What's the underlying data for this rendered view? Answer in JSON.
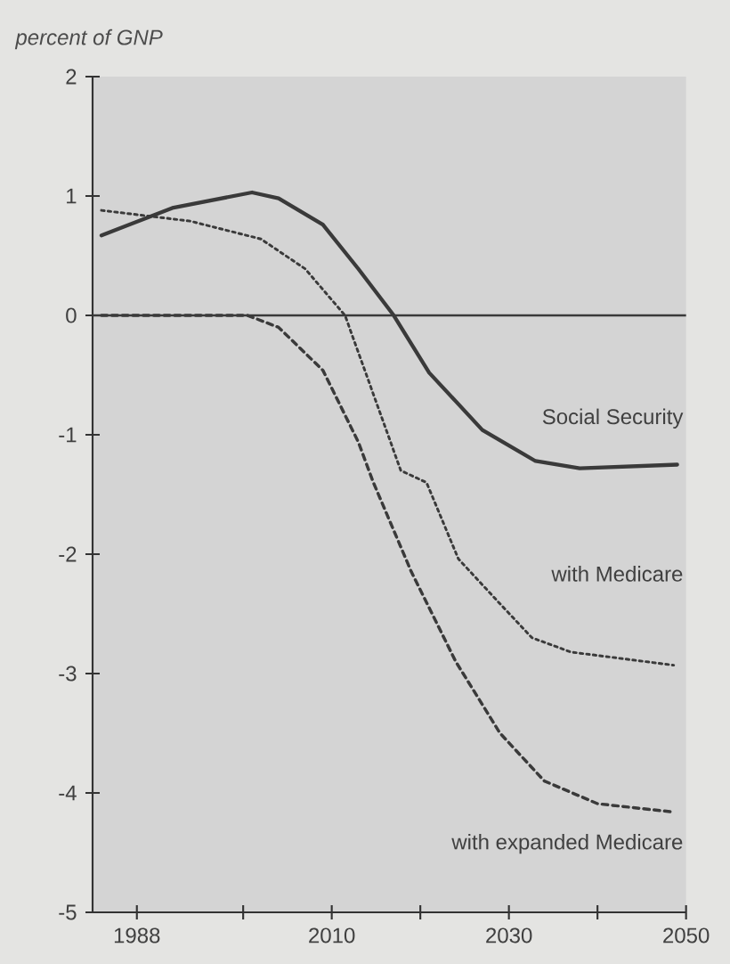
{
  "chart_data": {
    "type": "line",
    "ylabel": "percent of GNP",
    "xlim": [
      1983,
      2050
    ],
    "ylim": [
      -5,
      2
    ],
    "xticks": [
      1988,
      {
        "value": 2000,
        "label": null
      },
      2010,
      {
        "value": 2020,
        "label": null
      },
      2030,
      {
        "value": 2040,
        "label": null
      },
      2050
    ],
    "yticks": [
      -5,
      -4,
      -3,
      -2,
      -1,
      0,
      1,
      2
    ],
    "grid": false,
    "marker": "none",
    "ref_lines": [
      {
        "axis": "y",
        "value": 0,
        "color": "#3a3a3a",
        "line_style": "solid"
      }
    ],
    "series": [
      {
        "name": "Social Security",
        "color": "#3a3a3a",
        "line_style": "solid",
        "x": [
          1984,
          1992,
          2001,
          2004,
          2009,
          2013,
          2017,
          2021,
          2027,
          2033,
          2038,
          2049
        ],
        "values": [
          0.67,
          0.9,
          1.03,
          0.98,
          0.76,
          0.39,
          0,
          -0.48,
          -0.96,
          -1.22,
          -1.28,
          -1.25
        ]
      },
      {
        "name": "with Medicare",
        "color": "#3a3a3a",
        "line_style": "dotted",
        "x": [
          1984,
          1994,
          2002,
          2007,
          2010,
          2011.5,
          2017.8,
          2020.7,
          2024.3,
          2028.8,
          2032.6,
          2037,
          2048.6
        ],
        "values": [
          0.88,
          0.79,
          0.64,
          0.39,
          0.13,
          0,
          -1.3,
          -1.4,
          -2.04,
          -2.4,
          -2.7,
          -2.82,
          -2.93
        ]
      },
      {
        "name": "with expanded Medicare",
        "color": "#3a3a3a",
        "line_style": "dashed",
        "x": [
          1984,
          2000.5,
          2004,
          2009,
          2013,
          2014.7,
          2019,
          2024,
          2029,
          2034,
          2040,
          2048.6
        ],
        "values": [
          0,
          0,
          -0.1,
          -0.46,
          -1.06,
          -1.4,
          -2.15,
          -2.9,
          -3.5,
          -3.9,
          -4.09,
          -4.16
        ]
      }
    ]
  }
}
